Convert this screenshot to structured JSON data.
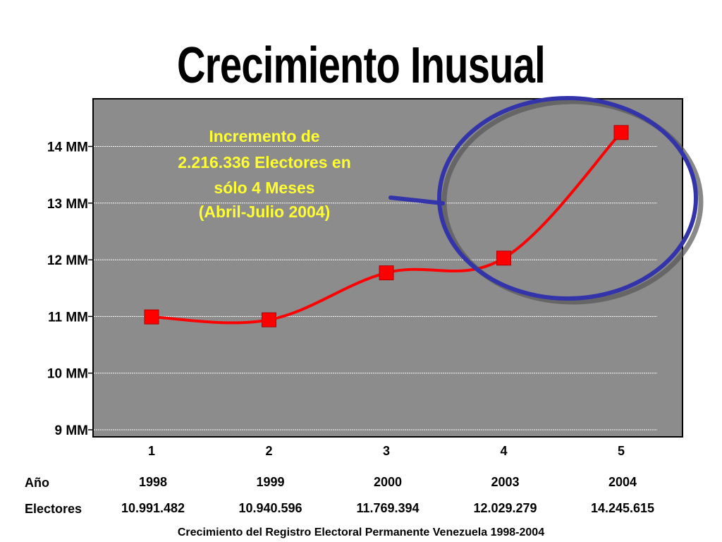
{
  "title": "Crecimiento Inusual",
  "annotation": [
    "Incremento de",
    "2.216.336 Electores en",
    "sólo 4 Meses",
    "(Abril-Julio 2004)"
  ],
  "table": {
    "row_labels": [
      "Año",
      "Electores"
    ],
    "years": [
      "1998",
      "1999",
      "2000",
      "2003",
      "2004"
    ],
    "voters": [
      "10.991.482",
      "10.940.596",
      "11.769.394",
      "12.029.279",
      "14.245.615"
    ]
  },
  "caption": "Crecimiento del Registro Electoral Permanente Venezuela 1998-2004",
  "colors": {
    "plot_bg": "#8c8c8c",
    "line": "#ff0000",
    "annotation": "#ffff33",
    "circle": "#3333aa"
  },
  "chart_data": {
    "type": "line",
    "x": [
      1,
      2,
      3,
      4,
      5
    ],
    "x_tick_labels": [
      "1",
      "2",
      "3",
      "4",
      "5"
    ],
    "values": [
      10991482,
      10940596,
      11769394,
      12029279,
      14245615
    ],
    "y_tick_values": [
      9000000,
      10000000,
      11000000,
      12000000,
      13000000,
      14000000
    ],
    "y_tick_labels": [
      "9 MM",
      "10 MM",
      "11 MM",
      "12 MM",
      "13 MM",
      "14 MM"
    ],
    "ylim": [
      9000000,
      15000000
    ],
    "grid": true,
    "marker": "square",
    "smoothed": true,
    "highlight": "points 4-5 circled"
  }
}
